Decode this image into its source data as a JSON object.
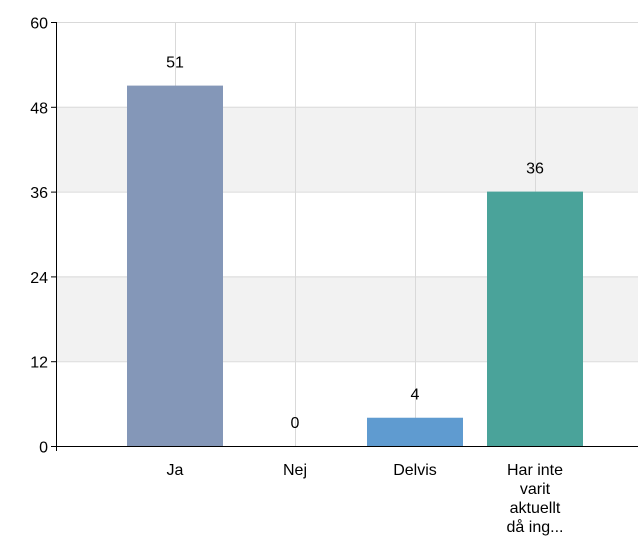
{
  "chart_data": {
    "type": "bar",
    "title": "",
    "xlabel": "",
    "ylabel": "",
    "categories": [
      "Ja",
      "Nej",
      "Delvis",
      "Har inte varit aktuellt då ing..."
    ],
    "category_label_lines": [
      [
        "Ja"
      ],
      [
        "Nej"
      ],
      [
        "Delvis"
      ],
      [
        "Har inte",
        "varit",
        "aktuellt",
        "då ing..."
      ]
    ],
    "values": [
      51,
      0,
      4,
      36
    ],
    "data_labels": [
      "51",
      "0",
      "4",
      "36"
    ],
    "bar_colors": [
      "#8497b8",
      "#8497b8",
      "#5f9bd0",
      "#4aa39a"
    ],
    "ylim": [
      0,
      60
    ],
    "yticks": [
      0,
      12,
      24,
      36,
      48,
      60
    ],
    "ytick_labels": [
      "0",
      "12",
      "24",
      "36",
      "48",
      "60"
    ],
    "grid": true,
    "band_color": "#f2f2f2",
    "grid_color": "#d9d9d9",
    "axis_color": "#000000"
  }
}
